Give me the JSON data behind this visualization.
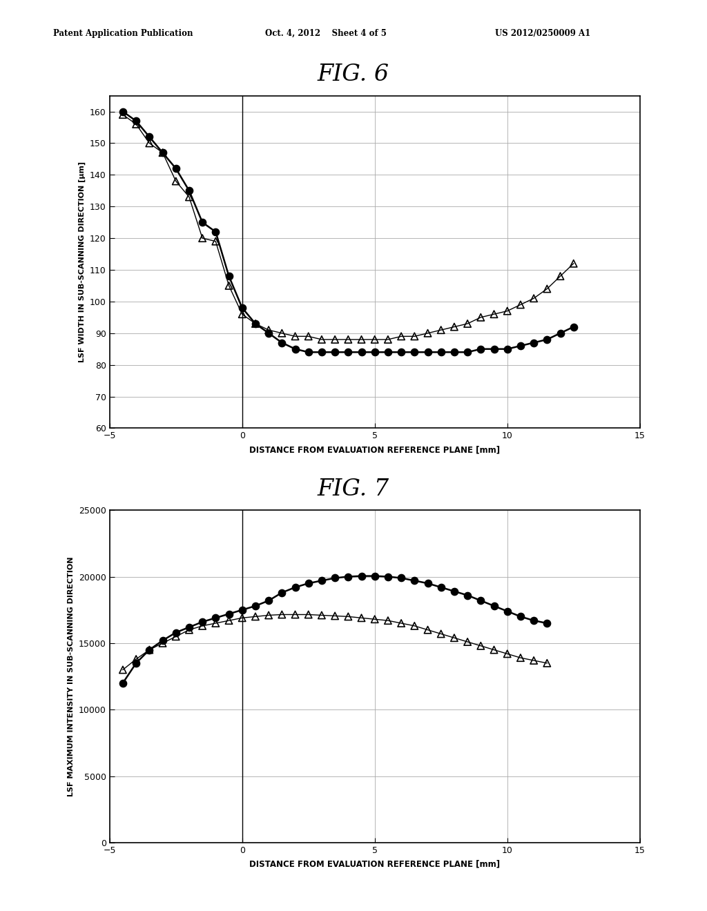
{
  "header_left": "Patent Application Publication",
  "header_mid": "Oct. 4, 2012    Sheet 4 of 5",
  "header_right": "US 2012/0250009 A1",
  "fig6_title": "FIG. 6",
  "fig7_title": "FIG. 7",
  "fig6_ylabel": "LSF WIDTH IN SUB-SCANNING DIRECTION [μm]",
  "fig6_xlabel": "DISTANCE FROM EVALUATION REFERENCE PLANE [mm]",
  "fig7_ylabel": "LSF MAXIMUM INTENSITY IN SUB-SCANNING DIRECTION",
  "fig7_xlabel": "DISTANCE FROM EVALUATION REFERENCE PLANE [mm]",
  "fig6_xlim": [
    -5,
    15
  ],
  "fig6_ylim": [
    60,
    165
  ],
  "fig6_yticks": [
    60,
    70,
    80,
    90,
    100,
    110,
    120,
    130,
    140,
    150,
    160
  ],
  "fig6_xticks": [
    -5,
    0,
    5,
    10,
    15
  ],
  "fig7_xlim": [
    -5,
    15
  ],
  "fig7_ylim": [
    0,
    25000
  ],
  "fig7_yticks": [
    0,
    5000,
    10000,
    15000,
    20000,
    25000
  ],
  "fig7_xticks": [
    -5,
    0,
    5,
    10,
    15
  ],
  "fig6_circles_x": [
    -4.5,
    -4.0,
    -3.5,
    -3.0,
    -2.5,
    -2.0,
    -1.5,
    -1.0,
    -0.5,
    0.0,
    0.5,
    1.0,
    1.5,
    2.0,
    2.5,
    3.0,
    3.5,
    4.0,
    4.5,
    5.0,
    5.5,
    6.0,
    6.5,
    7.0,
    7.5,
    8.0,
    8.5,
    9.0,
    9.5,
    10.0,
    10.5,
    11.0,
    11.5,
    12.0,
    12.5
  ],
  "fig6_circles_y": [
    160,
    157,
    152,
    147,
    142,
    135,
    125,
    122,
    108,
    98,
    93,
    90,
    87,
    85,
    84,
    84,
    84,
    84,
    84,
    84,
    84,
    84,
    84,
    84,
    84,
    84,
    84,
    85,
    85,
    85,
    86,
    87,
    88,
    90,
    92
  ],
  "fig6_triangles_x": [
    -4.5,
    -4.0,
    -3.5,
    -3.0,
    -2.5,
    -2.0,
    -1.5,
    -1.0,
    -0.5,
    0.0,
    0.5,
    1.0,
    1.5,
    2.0,
    2.5,
    3.0,
    3.5,
    4.0,
    4.5,
    5.0,
    5.5,
    6.0,
    6.5,
    7.0,
    7.5,
    8.0,
    8.5,
    9.0,
    9.5,
    10.0,
    10.5,
    11.0,
    11.5,
    12.0,
    12.5
  ],
  "fig6_triangles_y": [
    159,
    156,
    150,
    147,
    138,
    133,
    120,
    119,
    105,
    96,
    93,
    91,
    90,
    89,
    89,
    88,
    88,
    88,
    88,
    88,
    88,
    89,
    89,
    90,
    91,
    92,
    93,
    95,
    96,
    97,
    99,
    101,
    104,
    108,
    112
  ],
  "fig7_circles_x": [
    -4.5,
    -4.0,
    -3.5,
    -3.0,
    -2.5,
    -2.0,
    -1.5,
    -1.0,
    -0.5,
    0.0,
    0.5,
    1.0,
    1.5,
    2.0,
    2.5,
    3.0,
    3.5,
    4.0,
    4.5,
    5.0,
    5.5,
    6.0,
    6.5,
    7.0,
    7.5,
    8.0,
    8.5,
    9.0,
    9.5,
    10.0,
    10.5,
    11.0,
    11.5
  ],
  "fig7_circles_y": [
    12000,
    13500,
    14500,
    15200,
    15800,
    16200,
    16600,
    16900,
    17200,
    17500,
    17800,
    18200,
    18800,
    19200,
    19500,
    19700,
    19900,
    20000,
    20050,
    20050,
    20000,
    19900,
    19700,
    19500,
    19200,
    18900,
    18600,
    18200,
    17800,
    17400,
    17000,
    16700,
    16500
  ],
  "fig7_triangles_x": [
    -4.5,
    -4.0,
    -3.5,
    -3.0,
    -2.5,
    -2.0,
    -1.5,
    -1.0,
    -0.5,
    0.0,
    0.5,
    1.0,
    1.5,
    2.0,
    2.5,
    3.0,
    3.5,
    4.0,
    4.5,
    5.0,
    5.5,
    6.0,
    6.5,
    7.0,
    7.5,
    8.0,
    8.5,
    9.0,
    9.5,
    10.0,
    10.5,
    11.0,
    11.5
  ],
  "fig7_triangles_y": [
    13000,
    13800,
    14500,
    15000,
    15500,
    16000,
    16300,
    16500,
    16700,
    16900,
    17000,
    17100,
    17150,
    17150,
    17150,
    17100,
    17050,
    17000,
    16900,
    16800,
    16700,
    16500,
    16300,
    16000,
    15700,
    15400,
    15100,
    14800,
    14500,
    14200,
    13900,
    13700,
    13500
  ],
  "background_color": "#ffffff",
  "line_color": "#000000",
  "grid_color": "#aaaaaa"
}
